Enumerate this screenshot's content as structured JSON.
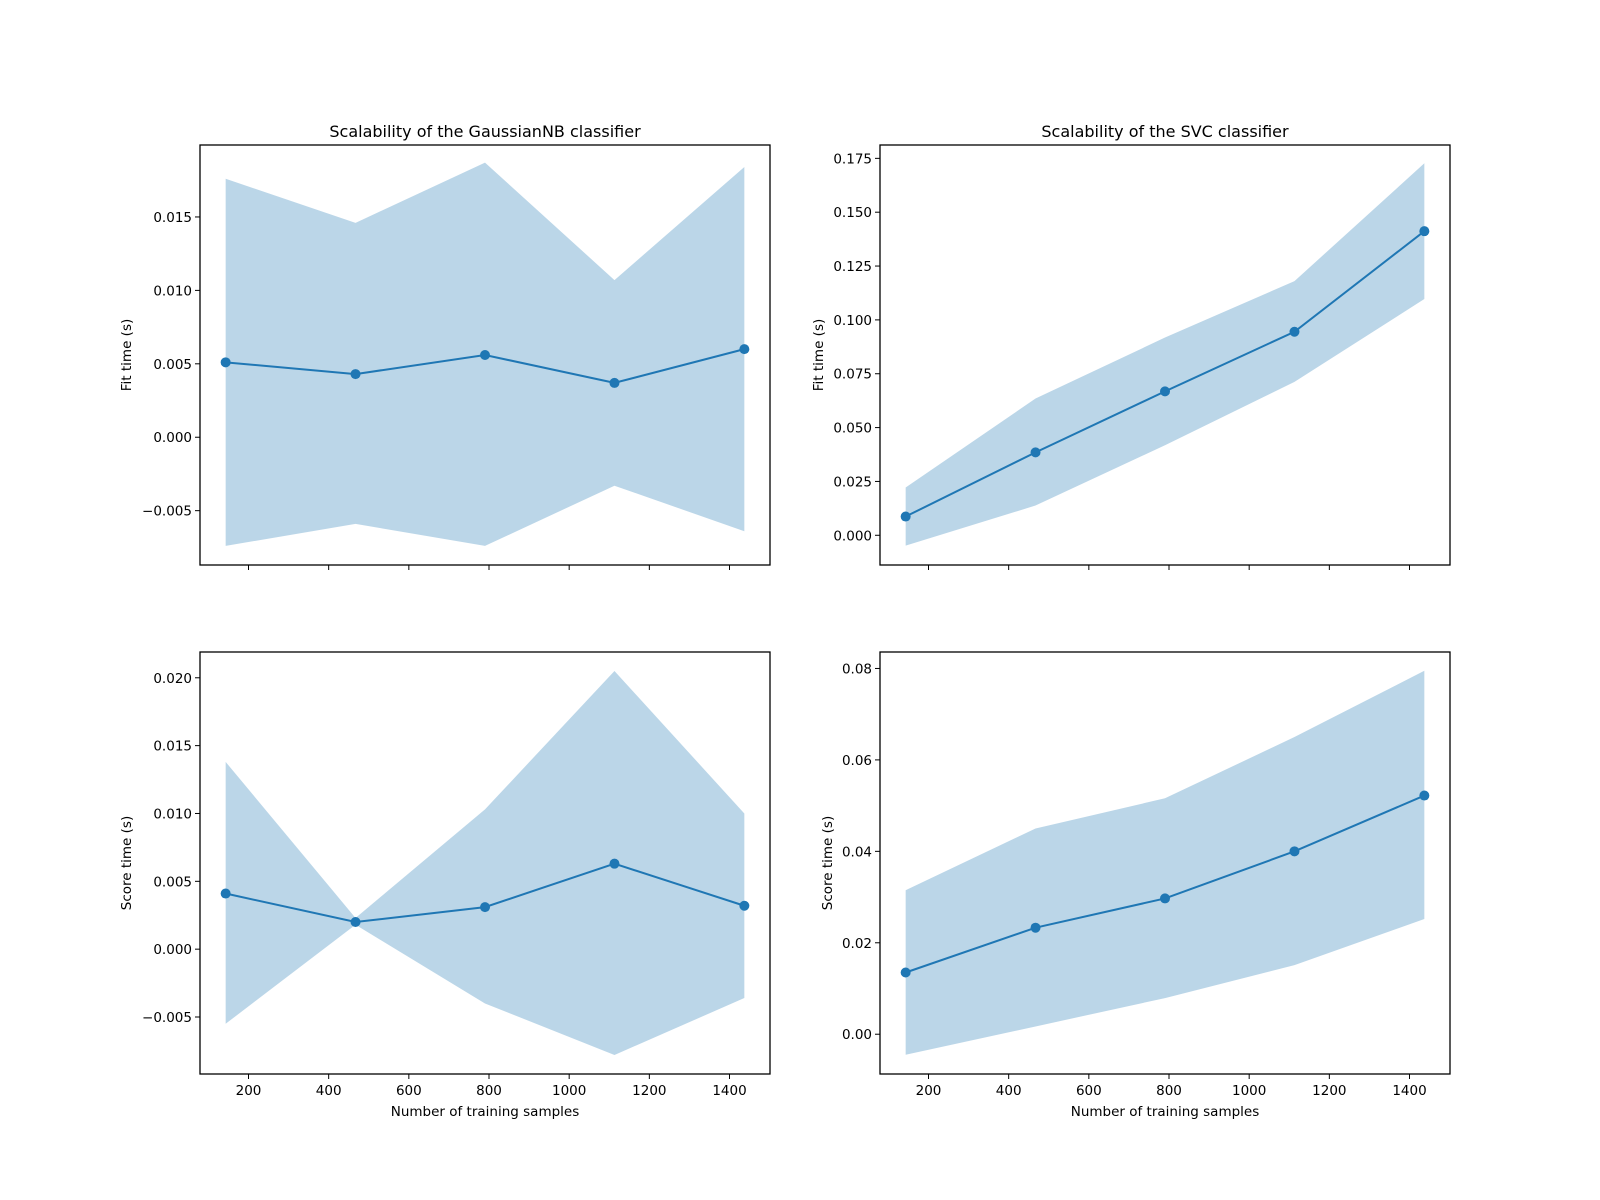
{
  "chart_data": [
    {
      "type": "line",
      "id": "nb-fit",
      "title": "Scalability of the GaussianNB classifier",
      "xlabel": "",
      "ylabel": "Fit time (s)",
      "x": [
        143,
        467,
        790,
        1113,
        1437
      ],
      "series": [
        {
          "name": "mean",
          "values": [
            0.0051,
            0.0043,
            0.0056,
            0.0037,
            0.006
          ],
          "marker": "o",
          "color": "#1f77b4"
        },
        {
          "name": "band_upper",
          "values": [
            0.0176,
            0.0146,
            0.0187,
            0.0107,
            0.0184
          ]
        },
        {
          "name": "band_lower",
          "values": [
            -0.0074,
            -0.0059,
            -0.0074,
            -0.0033,
            -0.0064
          ]
        }
      ],
      "xlim": [
        79,
        1501
      ],
      "ylim": [
        -0.0087,
        0.0199
      ],
      "xticks": [
        200,
        400,
        600,
        800,
        1000,
        1200,
        1400
      ],
      "xtick_labels": [],
      "yticks": [
        -0.005,
        0.0,
        0.005,
        0.01,
        0.015
      ],
      "ytick_labels": [
        "−0.005",
        "0.000",
        "0.005",
        "0.010",
        "0.015"
      ],
      "fill_color": "#1f77b4",
      "fill_alpha": 0.3
    },
    {
      "type": "line",
      "id": "svc-fit",
      "title": "Scalability of the SVC classifier",
      "xlabel": "",
      "ylabel": "Fit time (s)",
      "x": [
        143,
        467,
        790,
        1113,
        1437
      ],
      "series": [
        {
          "name": "mean",
          "values": [
            0.0087,
            0.0385,
            0.0668,
            0.0945,
            0.1412
          ],
          "marker": "o",
          "color": "#1f77b4"
        },
        {
          "name": "band_upper",
          "values": [
            0.0222,
            0.0635,
            0.0918,
            0.118,
            0.1727
          ]
        },
        {
          "name": "band_lower",
          "values": [
            -0.0048,
            0.0138,
            0.0418,
            0.0712,
            0.1097
          ]
        }
      ],
      "xlim": [
        79,
        1501
      ],
      "ylim": [
        -0.0138,
        0.1812
      ],
      "xticks": [
        200,
        400,
        600,
        800,
        1000,
        1200,
        1400
      ],
      "xtick_labels": [],
      "yticks": [
        0.0,
        0.025,
        0.05,
        0.075,
        0.1,
        0.125,
        0.15,
        0.175
      ],
      "ytick_labels": [
        "0.000",
        "0.025",
        "0.050",
        "0.075",
        "0.100",
        "0.125",
        "0.150",
        "0.175"
      ],
      "fill_color": "#1f77b4",
      "fill_alpha": 0.3
    },
    {
      "type": "line",
      "id": "nb-score",
      "title": "",
      "xlabel": "Number of training samples",
      "ylabel": "Score time (s)",
      "x": [
        143,
        467,
        790,
        1113,
        1437
      ],
      "series": [
        {
          "name": "mean",
          "values": [
            0.0041,
            0.002,
            0.0031,
            0.0063,
            0.0032
          ],
          "marker": "o",
          "color": "#1f77b4"
        },
        {
          "name": "band_upper",
          "values": [
            0.0138,
            0.0023,
            0.0103,
            0.0205,
            0.01
          ]
        },
        {
          "name": "band_lower",
          "values": [
            -0.0055,
            0.0018,
            -0.004,
            -0.0078,
            -0.0036
          ]
        }
      ],
      "xlim": [
        79,
        1501
      ],
      "ylim": [
        -0.0092,
        0.0219
      ],
      "xticks": [
        200,
        400,
        600,
        800,
        1000,
        1200,
        1400
      ],
      "xtick_labels": [
        "200",
        "400",
        "600",
        "800",
        "1000",
        "1200",
        "1400"
      ],
      "yticks": [
        -0.005,
        0.0,
        0.005,
        0.01,
        0.015,
        0.02
      ],
      "ytick_labels": [
        "−0.005",
        "0.000",
        "0.005",
        "0.010",
        "0.015",
        "0.020"
      ],
      "fill_color": "#1f77b4",
      "fill_alpha": 0.3
    },
    {
      "type": "line",
      "id": "svc-score",
      "title": "",
      "xlabel": "Number of training samples",
      "ylabel": "Score time (s)",
      "x": [
        143,
        467,
        790,
        1113,
        1437
      ],
      "series": [
        {
          "name": "mean",
          "values": [
            0.0135,
            0.0233,
            0.0297,
            0.04,
            0.0522
          ],
          "marker": "o",
          "color": "#1f77b4"
        },
        {
          "name": "band_upper",
          "values": [
            0.0315,
            0.045,
            0.0516,
            0.065,
            0.0795
          ]
        },
        {
          "name": "band_lower",
          "values": [
            -0.0045,
            0.0017,
            0.0079,
            0.0151,
            0.0252
          ]
        }
      ],
      "xlim": [
        79,
        1501
      ],
      "ylim": [
        -0.0087,
        0.0836
      ],
      "xticks": [
        200,
        400,
        600,
        800,
        1000,
        1200,
        1400
      ],
      "xtick_labels": [
        "200",
        "400",
        "600",
        "800",
        "1000",
        "1200",
        "1400"
      ],
      "yticks": [
        0.0,
        0.02,
        0.04,
        0.06,
        0.08
      ],
      "ytick_labels": [
        "0.00",
        "0.02",
        "0.04",
        "0.06",
        "0.08"
      ],
      "fill_color": "#1f77b4",
      "fill_alpha": 0.3
    }
  ]
}
